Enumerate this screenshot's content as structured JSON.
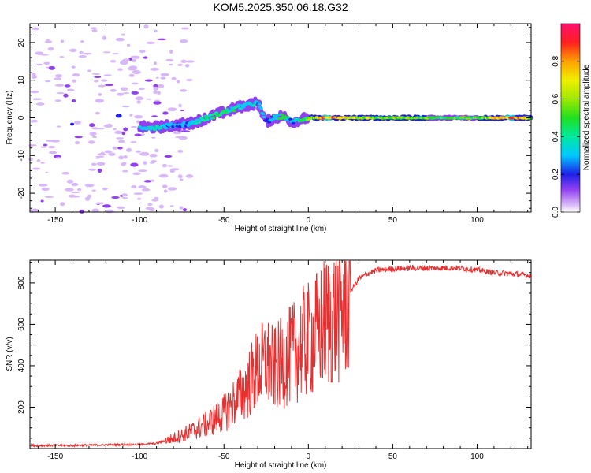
{
  "title": "KOM5.2025.350.06.18.G32",
  "chart_data": [
    {
      "type": "heatmap",
      "xlabel": "Height of straight line (km)",
      "ylabel": "Frequency (Hz)",
      "xlim": [
        -165,
        132
      ],
      "ylim": [
        -25,
        25
      ],
      "xticks": [
        "-150",
        "-100",
        "-50",
        "0",
        "50",
        "100"
      ],
      "yticks": [
        "20",
        "10",
        "0",
        "-10",
        "-20"
      ],
      "colorbar": {
        "label": "Normalized spectral amplitude",
        "range": [
          0,
          1
        ],
        "ticks": [
          "0.0",
          "0.2",
          "0.4",
          "0.6",
          "0.8"
        ]
      },
      "ridge": {
        "x": [
          -100,
          -90,
          -80,
          -70,
          -60,
          -50,
          -40,
          -30,
          -25,
          -20,
          -15,
          -10,
          -5,
          0,
          10,
          20,
          40,
          60,
          80,
          100,
          120,
          132
        ],
        "freq": [
          -2.5,
          -2.5,
          -2,
          -1.5,
          0,
          1.5,
          3,
          4,
          -1,
          0,
          0.5,
          -1,
          -0.5,
          0,
          0,
          0,
          0,
          0,
          0,
          0,
          0,
          0
        ],
        "amplitude": [
          0.35,
          0.4,
          0.3,
          0.35,
          0.45,
          0.5,
          0.45,
          0.35,
          0.25,
          0.4,
          0.5,
          0.3,
          0.45,
          0.55,
          0.9,
          0.8,
          0.6,
          0.6,
          0.55,
          0.55,
          0.9,
          0.7
        ]
      },
      "noise_region": {
        "x": [
          -165,
          -100
        ],
        "freq": [
          -25,
          25
        ],
        "amplitude": 0.05
      }
    },
    {
      "type": "line",
      "xlabel": "Height of straight line (km)",
      "ylabel": "SNR (v/v)",
      "xlim": [
        -165,
        132
      ],
      "ylim": [
        0,
        910
      ],
      "xticks": [
        "-150",
        "-100",
        "-50",
        "0",
        "50",
        "100"
      ],
      "yticks": [
        "200",
        "400",
        "600",
        "800"
      ],
      "series": [
        {
          "name": "SNR",
          "color": "#e83030",
          "x": [
            -165,
            -140,
            -120,
            -100,
            -90,
            -80,
            -70,
            -60,
            -50,
            -40,
            -35,
            -30,
            -25,
            -20,
            -15,
            -10,
            -5,
            0,
            5,
            10,
            15,
            20,
            25,
            30,
            35,
            40,
            50,
            60,
            70,
            80,
            90,
            100,
            110,
            120,
            132
          ],
          "y": [
            15,
            15,
            18,
            20,
            25,
            50,
            80,
            120,
            170,
            260,
            320,
            380,
            420,
            380,
            420,
            450,
            500,
            520,
            560,
            610,
            640,
            680,
            760,
            820,
            845,
            860,
            868,
            872,
            872,
            872,
            872,
            862,
            850,
            845,
            835
          ]
        }
      ]
    }
  ]
}
